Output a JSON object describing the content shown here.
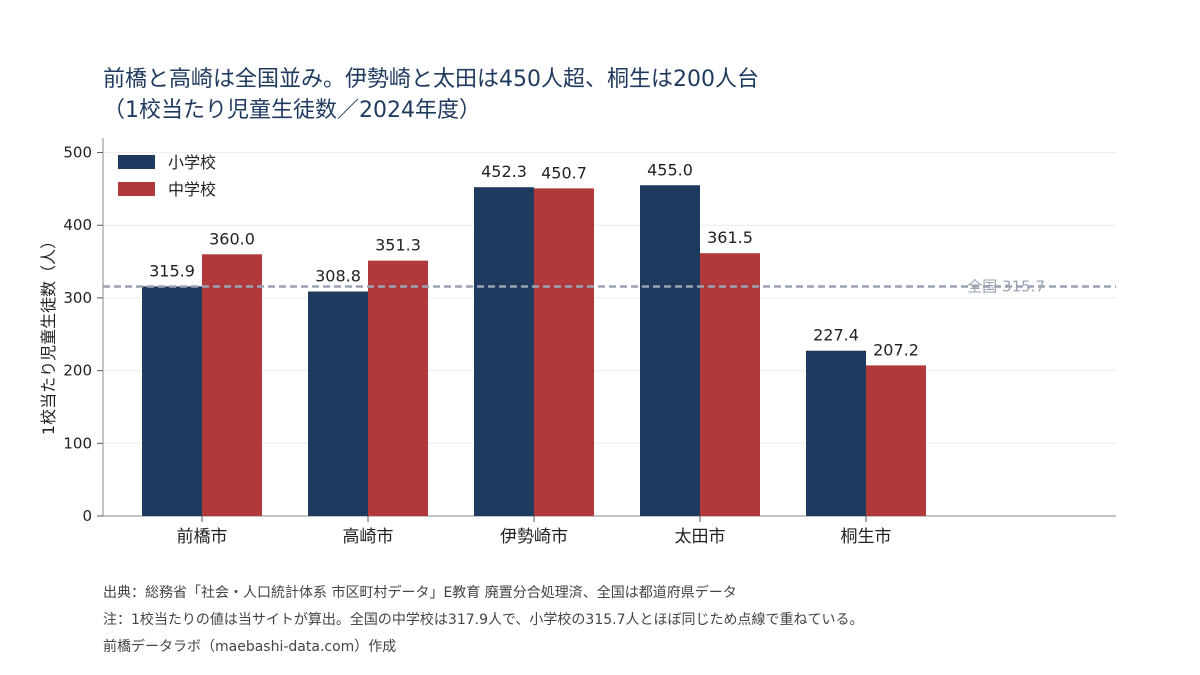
{
  "chart_data": {
    "type": "bar",
    "title": [
      "前橋と高崎は全国並み。伊勢崎と太田は450人超、桐生は200人台",
      "（1校当たり児童生徒数／2024年度）"
    ],
    "ylabel": "1校当たり児童生徒数（人）",
    "xlabel": "",
    "categories": [
      "前橋市",
      "高崎市",
      "伊勢崎市",
      "太田市",
      "桐生市"
    ],
    "series": [
      {
        "name": "小学校",
        "color": "#1f3a5f",
        "values": [
          315.9,
          308.8,
          452.3,
          455.0,
          227.4
        ]
      },
      {
        "name": "中学校",
        "color": "#b03a3a",
        "values": [
          360.0,
          351.3,
          450.7,
          361.5,
          207.2
        ]
      }
    ],
    "ylim": [
      0,
      520
    ],
    "yticks": [
      "0",
      "100",
      "200",
      "300",
      "400",
      "500"
    ],
    "reference_line": {
      "value": 315.7,
      "label": "全国 315.7",
      "color": "#9aa3b3",
      "style": "dashed"
    },
    "value_labels": [
      [
        "315.9",
        "308.8",
        "452.3",
        "455.0",
        "227.4"
      ],
      [
        "360.0",
        "351.3",
        "450.7",
        "361.5",
        "207.2"
      ]
    ],
    "grid": "horizontal",
    "legend": "top-left"
  },
  "footer": [
    "出典：総務省「社会・人口統計体系 市区町村データ」E教育 廃置分合処理済、全国は都道府県データ",
    "注：1校当たりの値は当サイトが算出。全国の中学校は317.9人で、小学校の315.7人とほぼ同じため点線で重ねている。",
    "前橋データラボ（maebashi-data.com）作成"
  ]
}
